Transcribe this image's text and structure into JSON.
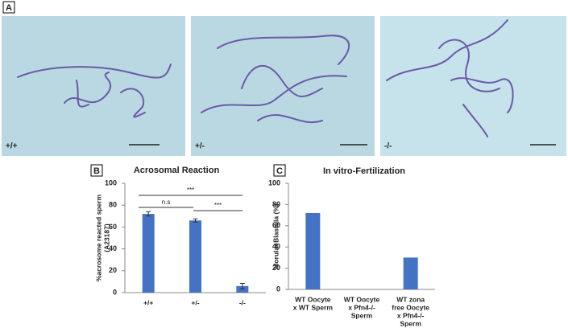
{
  "figure": {
    "panel_labels": [
      "A",
      "B",
      "C"
    ],
    "image_labels": [
      "+/+",
      "+/-",
      "-/-"
    ]
  },
  "chart_data": [
    {
      "type": "bar",
      "title": "Acrosomal Reaction",
      "y_label": [
        "%acrosome reacted sperm",
        "(A23187)"
      ],
      "categories": [
        [
          "+/+"
        ],
        [
          "+/-"
        ],
        [
          "-/-"
        ]
      ],
      "values": [
        72,
        66,
        6
      ],
      "errors": [
        2,
        1.5,
        2.5
      ],
      "color": "#4472c4",
      "ylim": [
        0,
        100
      ],
      "yticks": [
        0,
        20,
        40,
        60,
        80,
        100
      ],
      "annotations": [
        "***",
        "n.s",
        "***"
      ]
    },
    {
      "type": "bar",
      "title": "In vitro-Fertilization",
      "y_label": [
        "Morula+Blastula (%)"
      ],
      "categories": [
        [
          "WT Oocyte",
          "x WT Sperm"
        ],
        [
          "WT Oocyte",
          "x Pfn4-/-",
          "Sperm"
        ],
        [
          "WT zona",
          "free Oocyte",
          "x Pfn4-/-",
          "Sperm"
        ]
      ],
      "values": [
        72,
        0,
        30
      ],
      "color": "#4472c4",
      "ylim": [
        0,
        100
      ],
      "yticks": [
        0,
        20,
        40,
        60,
        80,
        100
      ]
    }
  ]
}
